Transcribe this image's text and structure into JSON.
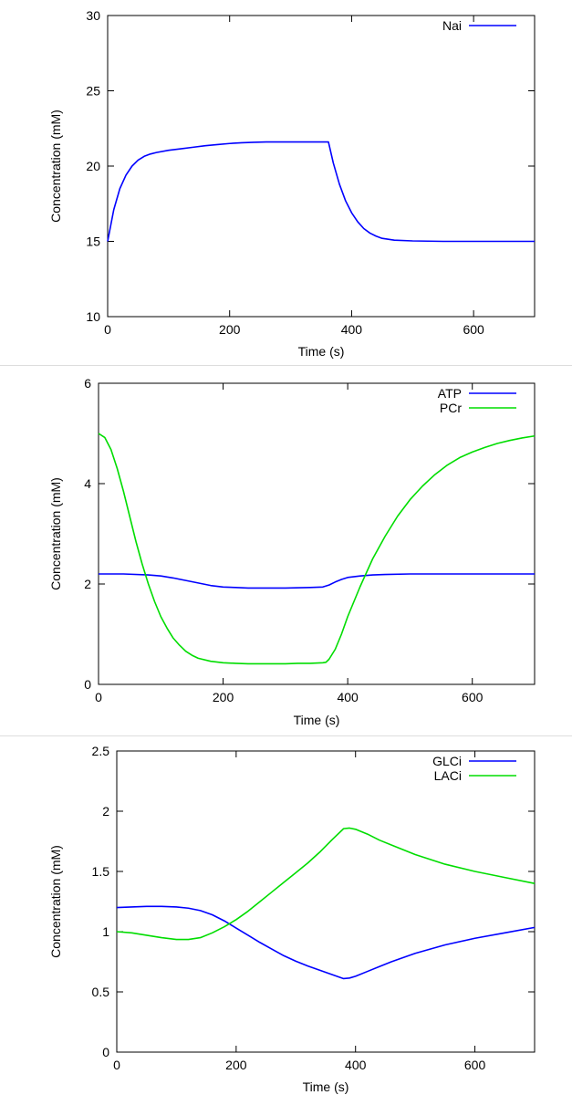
{
  "chart_data": [
    {
      "type": "line",
      "title": "",
      "xlabel": "Time (s)",
      "ylabel": "Concentration (mM)",
      "xlim": [
        0,
        700
      ],
      "ylim": [
        10,
        30
      ],
      "xticks": [
        0,
        200,
        400,
        600
      ],
      "yticks": [
        10,
        15,
        20,
        25,
        30
      ],
      "grid": false,
      "legend": "top-right",
      "series": [
        {
          "name": "Nai",
          "color": "#0000ff",
          "x": [
            0,
            10,
            20,
            30,
            40,
            50,
            60,
            70,
            80,
            100,
            120,
            140,
            160,
            180,
            200,
            220,
            240,
            260,
            280,
            300,
            320,
            340,
            360,
            362,
            370,
            380,
            390,
            400,
            410,
            420,
            430,
            440,
            450,
            470,
            500,
            550,
            600,
            650,
            700
          ],
          "y": [
            15.0,
            17.1,
            18.5,
            19.4,
            20.0,
            20.4,
            20.65,
            20.8,
            20.9,
            21.05,
            21.15,
            21.25,
            21.35,
            21.43,
            21.5,
            21.55,
            21.58,
            21.6,
            21.6,
            21.6,
            21.6,
            21.6,
            21.6,
            21.6,
            20.2,
            18.8,
            17.7,
            16.9,
            16.3,
            15.85,
            15.55,
            15.35,
            15.2,
            15.08,
            15.03,
            15.0,
            15.0,
            15.0,
            15.0
          ]
        }
      ]
    },
    {
      "type": "line",
      "title": "",
      "xlabel": "Time (s)",
      "ylabel": "Concentration (mM)",
      "xlim": [
        0,
        700
      ],
      "ylim": [
        0,
        6
      ],
      "xticks": [
        0,
        200,
        400,
        600
      ],
      "yticks": [
        0,
        2,
        4,
        6
      ],
      "grid": false,
      "legend": "top-right",
      "series": [
        {
          "name": "ATP",
          "color": "#0000ff",
          "x": [
            0,
            40,
            80,
            100,
            120,
            140,
            160,
            180,
            200,
            220,
            240,
            260,
            300,
            340,
            360,
            370,
            380,
            390,
            400,
            420,
            440,
            460,
            500,
            550,
            600,
            650,
            700
          ],
          "y": [
            2.2,
            2.2,
            2.18,
            2.16,
            2.12,
            2.07,
            2.02,
            1.97,
            1.94,
            1.93,
            1.92,
            1.92,
            1.92,
            1.93,
            1.94,
            1.98,
            2.04,
            2.09,
            2.13,
            2.16,
            2.18,
            2.19,
            2.2,
            2.2,
            2.2,
            2.2,
            2.2
          ]
        },
        {
          "name": "PCr",
          "color": "#00dd00",
          "x": [
            0,
            10,
            20,
            30,
            40,
            50,
            60,
            70,
            80,
            90,
            100,
            110,
            120,
            130,
            140,
            150,
            160,
            180,
            200,
            220,
            240,
            260,
            280,
            300,
            320,
            340,
            360,
            365,
            370,
            380,
            390,
            400,
            420,
            440,
            460,
            480,
            500,
            520,
            540,
            560,
            580,
            600,
            620,
            640,
            660,
            680,
            700
          ],
          "y": [
            5.0,
            4.92,
            4.68,
            4.3,
            3.85,
            3.35,
            2.85,
            2.4,
            2.0,
            1.65,
            1.35,
            1.12,
            0.92,
            0.78,
            0.66,
            0.58,
            0.52,
            0.46,
            0.43,
            0.42,
            0.41,
            0.41,
            0.41,
            0.41,
            0.42,
            0.42,
            0.43,
            0.44,
            0.5,
            0.7,
            1.0,
            1.35,
            1.95,
            2.5,
            2.95,
            3.35,
            3.68,
            3.95,
            4.18,
            4.37,
            4.52,
            4.63,
            4.72,
            4.8,
            4.86,
            4.91,
            4.95
          ]
        }
      ]
    },
    {
      "type": "line",
      "title": "",
      "xlabel": "Time (s)",
      "ylabel": "Concentration (mM)",
      "xlim": [
        0,
        700
      ],
      "ylim": [
        0,
        2.5
      ],
      "xticks": [
        0,
        200,
        400,
        600
      ],
      "yticks": [
        0,
        0.5,
        1,
        1.5,
        2,
        2.5
      ],
      "grid": false,
      "legend": "top-right",
      "series": [
        {
          "name": "GLCi",
          "color": "#0000ff",
          "x": [
            0,
            25,
            50,
            75,
            100,
            120,
            140,
            160,
            180,
            200,
            220,
            240,
            260,
            280,
            300,
            320,
            340,
            360,
            380,
            390,
            400,
            420,
            440,
            460,
            500,
            550,
            600,
            650,
            700
          ],
          "y": [
            1.2,
            1.205,
            1.21,
            1.21,
            1.205,
            1.195,
            1.175,
            1.14,
            1.09,
            1.03,
            0.97,
            0.91,
            0.855,
            0.8,
            0.755,
            0.715,
            0.68,
            0.645,
            0.61,
            0.615,
            0.63,
            0.67,
            0.71,
            0.75,
            0.82,
            0.89,
            0.945,
            0.99,
            1.035
          ]
        },
        {
          "name": "LACi",
          "color": "#00dd00",
          "x": [
            0,
            25,
            50,
            75,
            100,
            120,
            140,
            160,
            180,
            200,
            220,
            240,
            260,
            280,
            300,
            320,
            340,
            360,
            380,
            390,
            400,
            420,
            440,
            460,
            500,
            550,
            600,
            650,
            700
          ],
          "y": [
            1.0,
            0.99,
            0.97,
            0.95,
            0.935,
            0.935,
            0.95,
            0.99,
            1.04,
            1.1,
            1.17,
            1.25,
            1.33,
            1.41,
            1.49,
            1.57,
            1.66,
            1.76,
            1.855,
            1.86,
            1.85,
            1.81,
            1.76,
            1.72,
            1.64,
            1.56,
            1.5,
            1.45,
            1.4
          ]
        }
      ]
    }
  ]
}
